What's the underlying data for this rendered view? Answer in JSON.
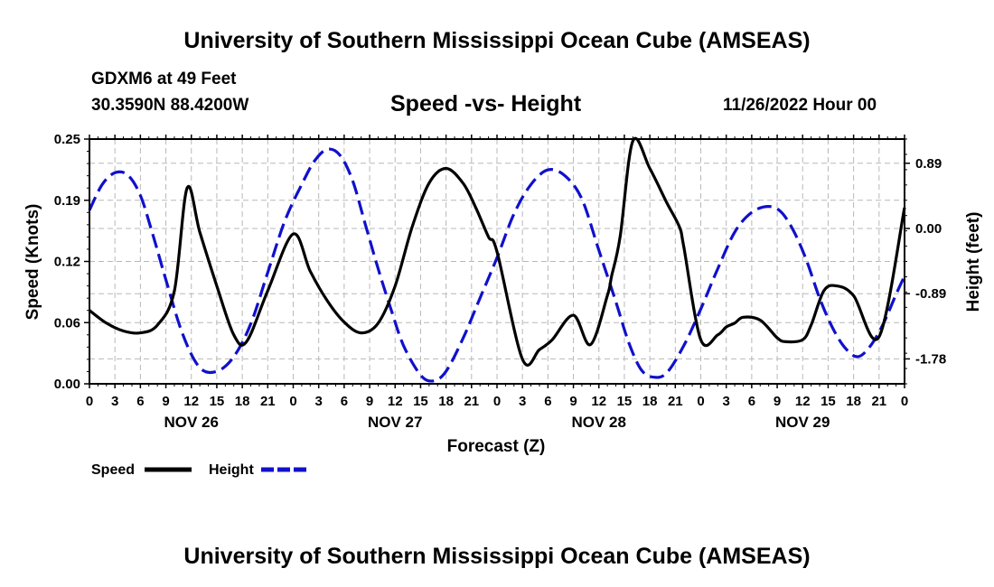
{
  "header": {
    "title": "University of Southern Mississippi Ocean Cube (AMSEAS)",
    "station": "GDXM6 at 49 Feet",
    "location": "30.3590N  88.4200W",
    "date": "11/26/2022 Hour 00",
    "bottom_title": "University of Southern Mississippi Ocean Cube (AMSEAS)"
  },
  "chart_data": {
    "type": "line",
    "title": "Speed -vs- Height",
    "xlabel": "Forecast (Z)",
    "ylabel": "Speed (Knots)",
    "y2label": "Height (feet)",
    "xlim": [
      0,
      96
    ],
    "ylim": [
      0,
      0.25
    ],
    "y2lim": [
      -2.12,
      1.22
    ],
    "grid": true,
    "x_tick_labels": [
      "0",
      "3",
      "6",
      "9",
      "12",
      "15",
      "18",
      "21",
      "0",
      "3",
      "6",
      "9",
      "12",
      "15",
      "18",
      "21",
      "0",
      "3",
      "6",
      "9",
      "12",
      "15",
      "18",
      "21",
      "0",
      "3",
      "6",
      "9",
      "12",
      "15",
      "18",
      "21",
      "0"
    ],
    "day_labels": [
      {
        "label": "NOV 26",
        "x": 12
      },
      {
        "label": "NOV 27",
        "x": 36
      },
      {
        "label": "NOV 28",
        "x": 60
      },
      {
        "label": "NOV 29",
        "x": 84
      }
    ],
    "y_ticks": [
      "0.00",
      "0.06",
      "0.12",
      "0.19",
      "0.25"
    ],
    "y_tick_values": [
      0,
      0.0625,
      0.125,
      0.1875,
      0.25
    ],
    "y2_ticks": [
      "-1.78",
      "-0.89",
      "0.00",
      "0.89"
    ],
    "y2_tick_values": [
      -1.78,
      -0.89,
      0.0,
      0.89
    ],
    "series": [
      {
        "name": "Speed",
        "axis": "left",
        "color": "#000000",
        "style": "solid",
        "x": [
          0,
          2,
          4,
          6,
          8,
          10,
          11.5,
          13,
          15,
          17,
          18.5,
          21,
          24,
          26,
          28,
          30,
          32,
          34,
          36,
          38,
          40,
          42,
          44,
          45.5,
          47,
          48,
          51,
          53,
          54.5,
          57,
          59,
          61,
          61.5,
          62.5,
          64,
          66,
          68,
          69.5,
          70,
          72,
          74,
          75,
          76,
          77,
          79,
          81,
          82,
          84,
          85,
          86.5,
          88,
          90,
          93,
          96
        ],
        "values": [
          0.075,
          0.062,
          0.054,
          0.052,
          0.06,
          0.095,
          0.2,
          0.155,
          0.1,
          0.05,
          0.043,
          0.095,
          0.153,
          0.115,
          0.085,
          0.063,
          0.052,
          0.062,
          0.1,
          0.16,
          0.205,
          0.22,
          0.205,
          0.18,
          0.15,
          0.135,
          0.025,
          0.035,
          0.045,
          0.07,
          0.04,
          0.09,
          0.11,
          0.15,
          0.248,
          0.22,
          0.185,
          0.16,
          0.14,
          0.045,
          0.05,
          0.058,
          0.062,
          0.068,
          0.065,
          0.047,
          0.043,
          0.045,
          0.06,
          0.095,
          0.1,
          0.09,
          0.048,
          0.18
        ]
      },
      {
        "name": "Height",
        "axis": "right",
        "color": "#1010cc",
        "style": "dashed",
        "x": [
          0,
          1.5,
          3,
          4.5,
          6,
          7.5,
          9,
          11,
          13,
          15,
          17,
          19,
          21,
          23,
          25,
          26.5,
          28,
          29.5,
          31,
          32.5,
          34,
          35.5,
          37,
          39,
          40.5,
          42,
          44,
          46,
          48,
          50,
          52,
          54,
          56,
          58,
          60,
          62,
          63.5,
          65,
          66.5,
          68,
          70,
          72,
          74,
          76,
          78,
          80,
          81.5,
          83,
          84.5,
          86,
          87.5,
          89,
          90.5,
          92,
          93.5,
          95,
          96
        ],
        "values": [
          0.25,
          0.6,
          0.76,
          0.73,
          0.45,
          -0.1,
          -0.7,
          -1.45,
          -1.9,
          -1.95,
          -1.75,
          -1.3,
          -0.6,
          0.1,
          0.6,
          0.92,
          1.08,
          1.0,
          0.65,
          0.05,
          -0.55,
          -1.1,
          -1.6,
          -2.0,
          -2.08,
          -1.95,
          -1.5,
          -0.95,
          -0.4,
          0.2,
          0.6,
          0.8,
          0.72,
          0.4,
          -0.3,
          -1.0,
          -1.55,
          -1.93,
          -2.03,
          -1.97,
          -1.6,
          -1.1,
          -0.55,
          -0.05,
          0.22,
          0.3,
          0.22,
          -0.05,
          -0.45,
          -0.95,
          -1.35,
          -1.63,
          -1.75,
          -1.6,
          -1.3,
          -0.9,
          -0.65
        ]
      }
    ]
  },
  "legend": {
    "speed_label": "Speed",
    "height_label": "Height"
  },
  "colors": {
    "speed": "#000000",
    "height": "#1010cc",
    "grid": "#b8b8b8"
  }
}
